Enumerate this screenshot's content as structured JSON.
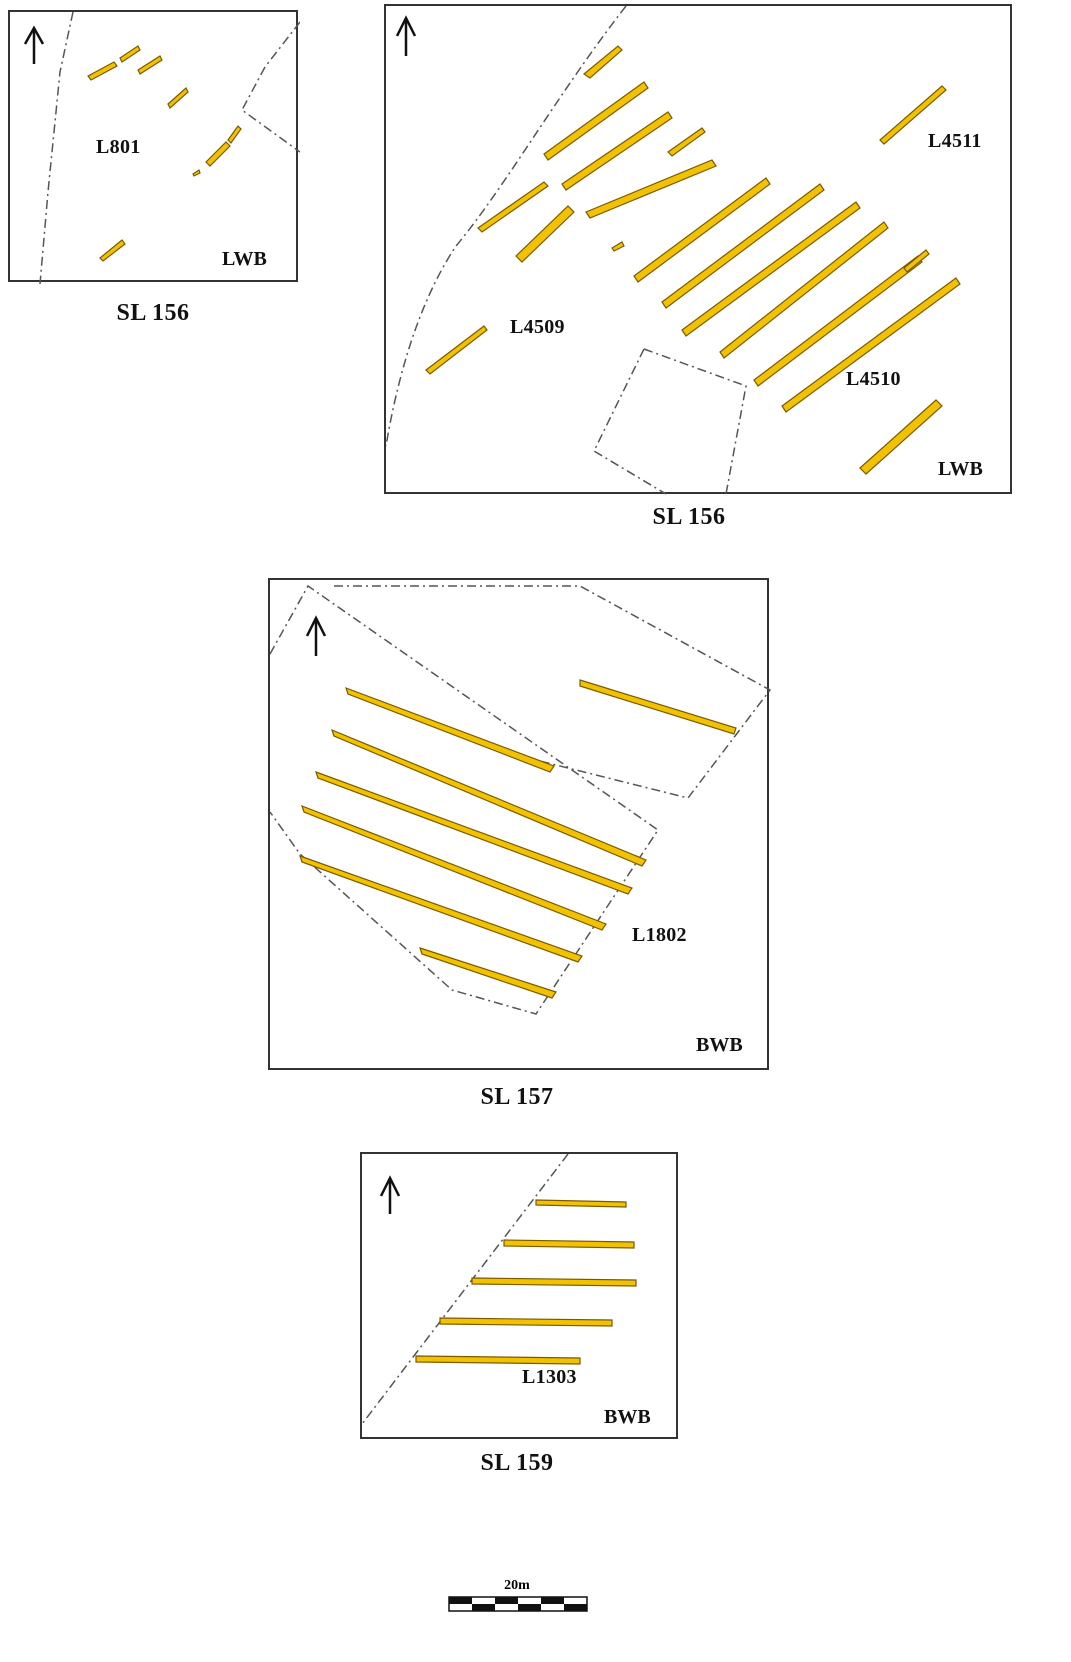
{
  "panels": [
    {
      "caption": "SL 156",
      "series_label": "L801",
      "wb_tag": "LWB"
    },
    {
      "caption": "SL 156",
      "series_labels": [
        "L4511",
        "L4509",
        "L4510"
      ],
      "wb_tag": "LWB"
    },
    {
      "caption": "SL 157",
      "series_label": "L1802",
      "wb_tag": "BWB"
    },
    {
      "caption": "SL 159",
      "series_label": "L1303",
      "wb_tag": "BWB"
    }
  ],
  "scale": {
    "label": "20m"
  },
  "colors": {
    "fill": "#f2c200",
    "outline": "#7a5a00",
    "boundary": "#555555"
  },
  "icons": [
    "north-arrow-icon"
  ]
}
